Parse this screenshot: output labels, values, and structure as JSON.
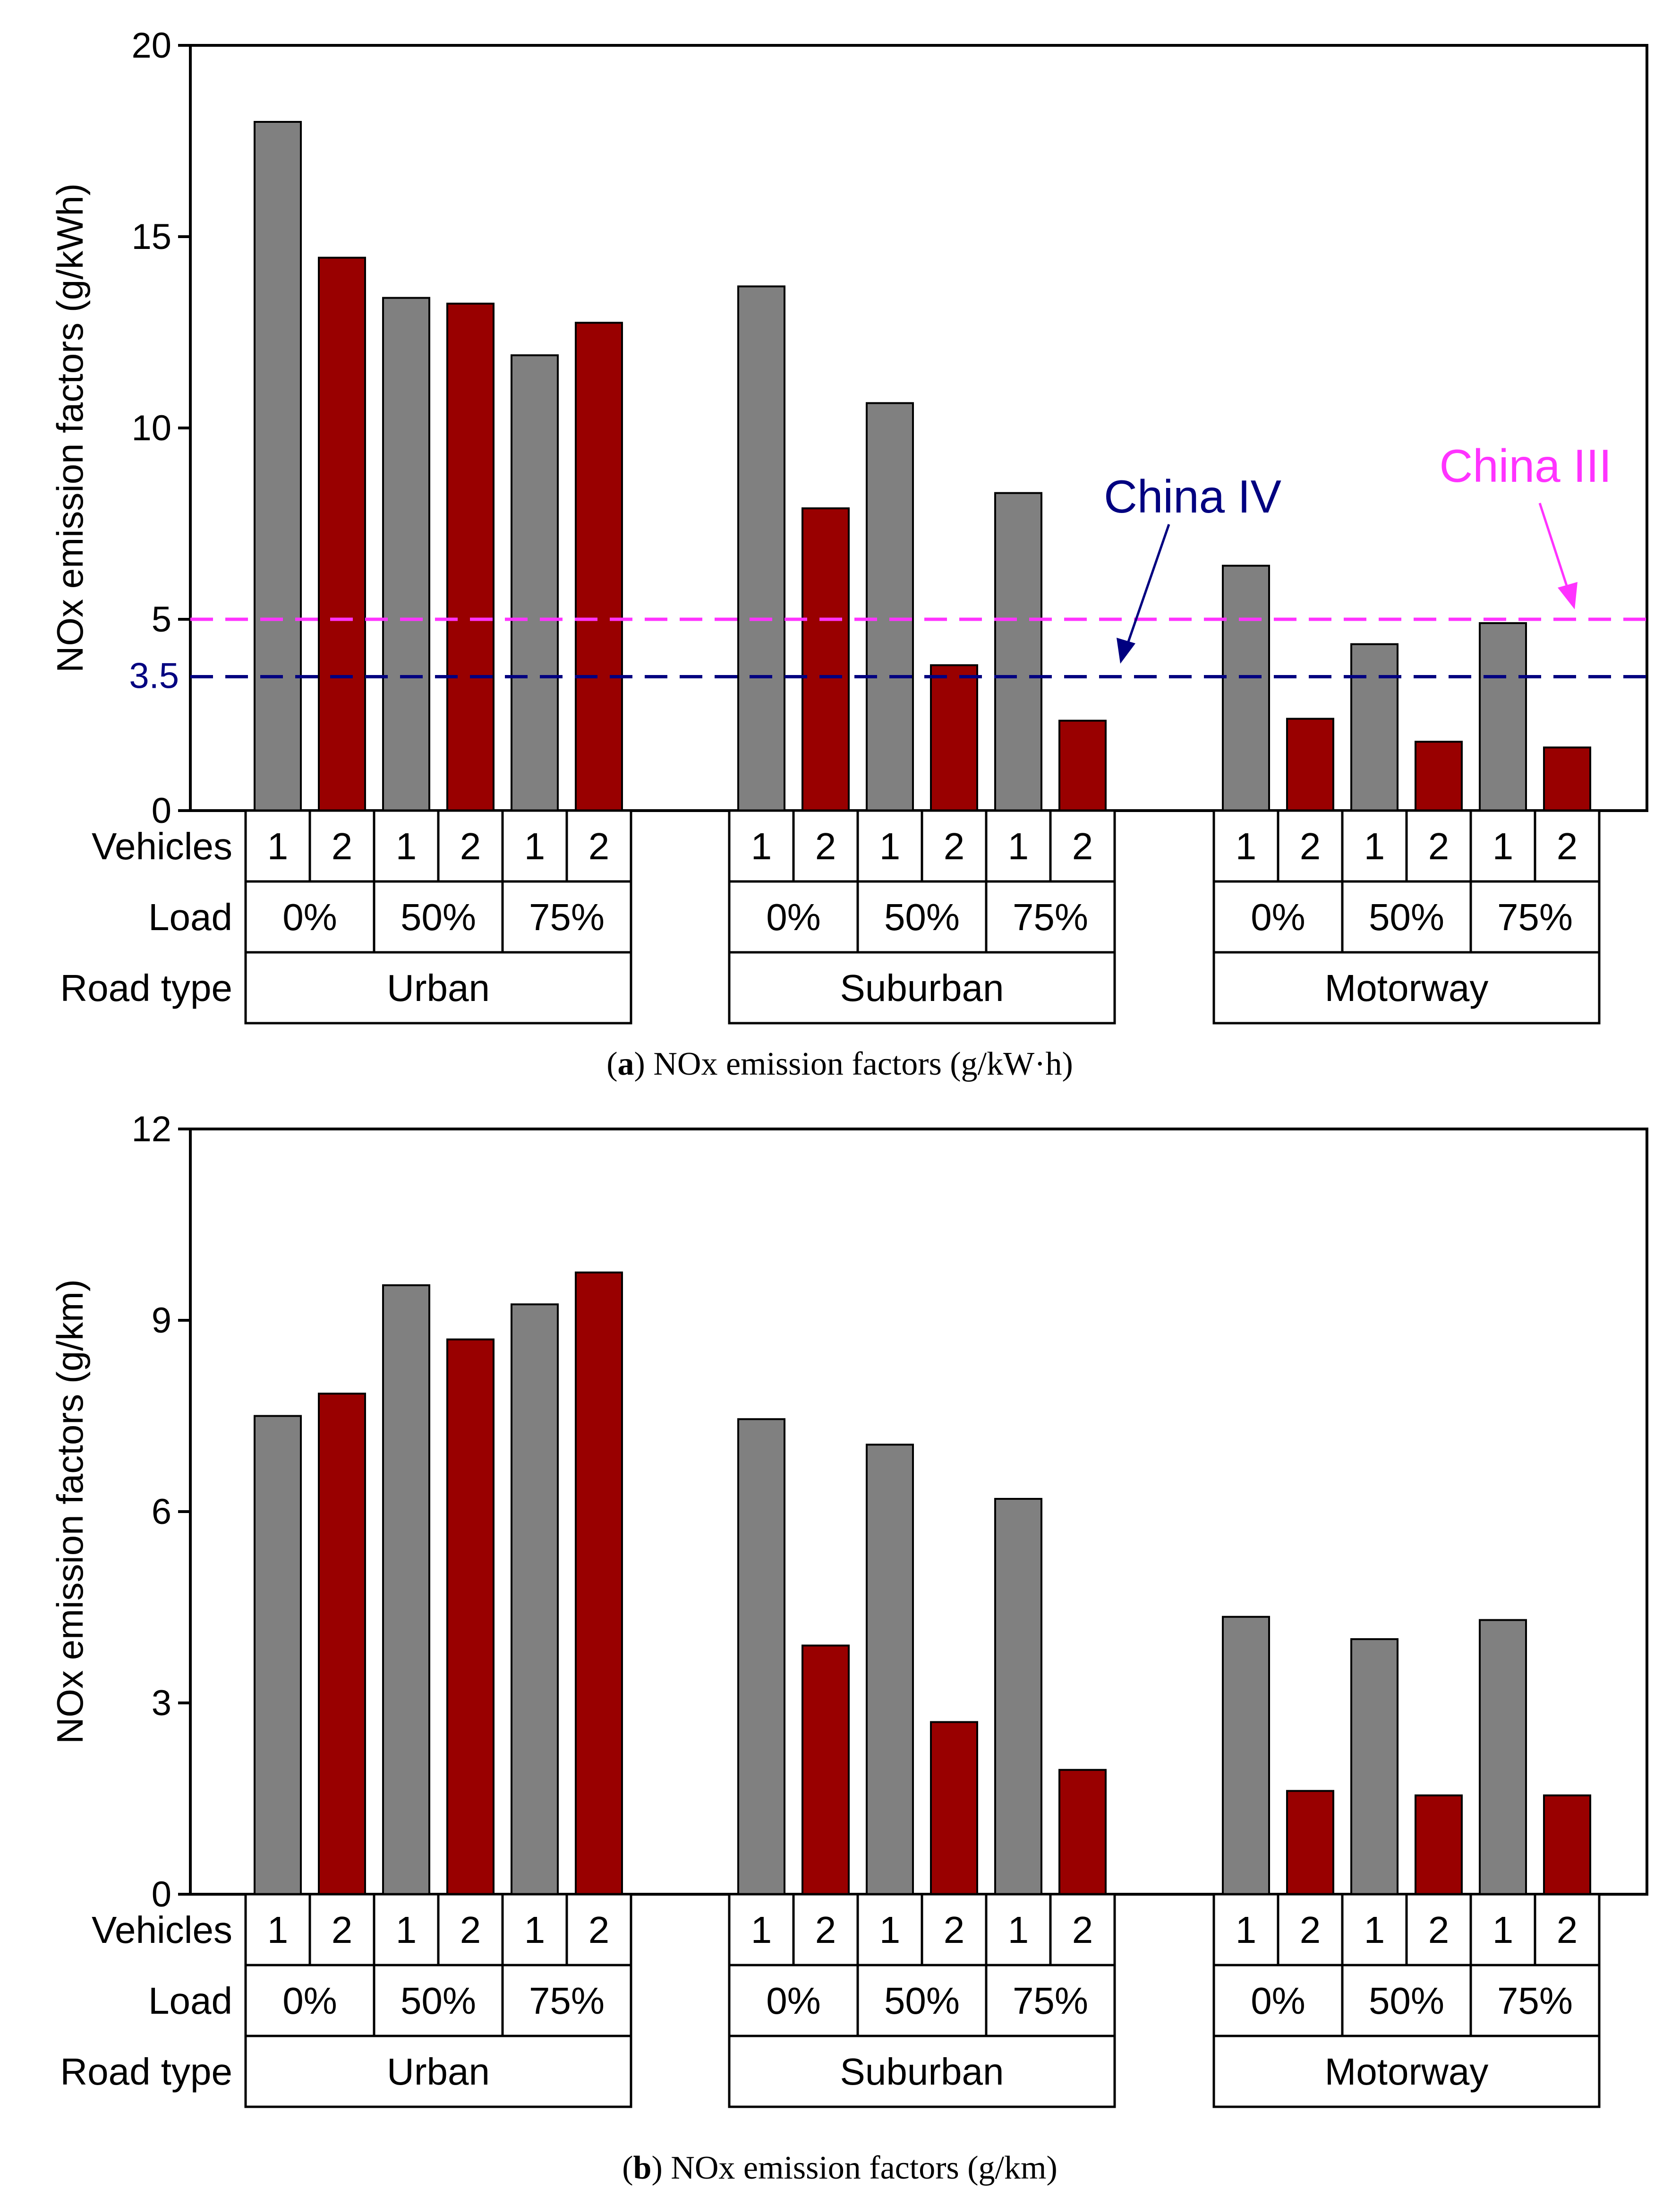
{
  "colors": {
    "vehicle1": "#808080",
    "vehicle2": "#990000",
    "china3": "#ff33ff",
    "china4": "#000080"
  },
  "table_labels": {
    "vehicles": "Vehicles",
    "load": "Load",
    "road_type": "Road type"
  },
  "road_types": [
    "Urban",
    "Suburban",
    "Motorway"
  ],
  "loads": [
    "0%",
    "50%",
    "75%"
  ],
  "vehicle_ids": [
    "1",
    "2"
  ],
  "chart_data": [
    {
      "type": "bar",
      "title": "",
      "ylabel": "NOx emission factors (g/kWh)",
      "ylim": [
        0,
        20
      ],
      "yticks": [
        "0",
        "5",
        "10",
        "15",
        "20"
      ],
      "caption_letter": "a",
      "caption_text": "NOx emission factors (g/kW·h)",
      "series": [
        {
          "name": "1",
          "values": [
            18.0,
            13.4,
            11.9,
            13.7,
            10.65,
            8.3,
            6.4,
            4.35,
            4.9
          ]
        },
        {
          "name": "2",
          "values": [
            14.45,
            13.25,
            12.75,
            7.9,
            3.8,
            2.35,
            2.4,
            1.8,
            1.65
          ]
        }
      ],
      "reference_lines": [
        {
          "name": "China III",
          "value": 5,
          "label": "China III"
        },
        {
          "name": "China IV",
          "value": 3.5,
          "label": "China IV",
          "tick_label": "3.5"
        }
      ]
    },
    {
      "type": "bar",
      "title": "",
      "ylabel": "NOx emission factors (g/km)",
      "ylim": [
        0,
        12
      ],
      "yticks": [
        "0",
        "3",
        "6",
        "9",
        "12"
      ],
      "caption_letter": "b",
      "caption_text": "NOx emission factors (g/km)",
      "series": [
        {
          "name": "1",
          "values": [
            7.5,
            9.55,
            9.25,
            7.45,
            7.05,
            6.2,
            4.35,
            4.0,
            4.3
          ]
        },
        {
          "name": "2",
          "values": [
            7.85,
            8.7,
            9.75,
            3.9,
            2.7,
            1.95,
            1.62,
            1.55,
            1.55
          ]
        }
      ],
      "reference_lines": []
    }
  ]
}
